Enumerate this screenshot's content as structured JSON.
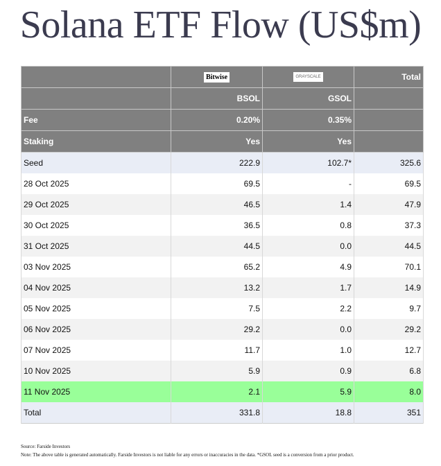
{
  "title": "Solana ETF Flow (US$m)",
  "header": {
    "logos": [
      "Bitwise",
      "GRAYSCALE"
    ],
    "total_label": "Total",
    "tickers": [
      "BSOL",
      "GSOL"
    ],
    "fee_label": "Fee",
    "fees": [
      "0.20%",
      "0.35%"
    ],
    "staking_label": "Staking",
    "staking": [
      "Yes",
      "Yes"
    ]
  },
  "rows": [
    {
      "label": "Seed",
      "bsol": "222.9",
      "gsol": "102.7*",
      "total": "325.6"
    },
    {
      "label": "28 Oct 2025",
      "bsol": "69.5",
      "gsol": "-",
      "total": "69.5"
    },
    {
      "label": "29 Oct 2025",
      "bsol": "46.5",
      "gsol": "1.4",
      "total": "47.9"
    },
    {
      "label": "30 Oct 2025",
      "bsol": "36.5",
      "gsol": "0.8",
      "total": "37.3"
    },
    {
      "label": "31 Oct 2025",
      "bsol": "44.5",
      "gsol": "0.0",
      "total": "44.5"
    },
    {
      "label": "03 Nov 2025",
      "bsol": "65.2",
      "gsol": "4.9",
      "total": "70.1"
    },
    {
      "label": "04 Nov 2025",
      "bsol": "13.2",
      "gsol": "1.7",
      "total": "14.9"
    },
    {
      "label": "05 Nov 2025",
      "bsol": "7.5",
      "gsol": "2.2",
      "total": "9.7"
    },
    {
      "label": "06 Nov 2025",
      "bsol": "29.2",
      "gsol": "0.0",
      "total": "29.2"
    },
    {
      "label": "07 Nov 2025",
      "bsol": "11.7",
      "gsol": "1.0",
      "total": "12.7"
    },
    {
      "label": "10 Nov 2025",
      "bsol": "5.9",
      "gsol": "0.9",
      "total": "6.8"
    },
    {
      "label": "11 Nov 2025",
      "bsol": "2.1",
      "gsol": "5.9",
      "total": "8.0"
    },
    {
      "label": "Total",
      "bsol": "331.8",
      "gsol": "18.8",
      "total": "351"
    }
  ],
  "colors": {
    "header": "#808080",
    "highlight": "#99ff99",
    "seed_total": "#e9edf6",
    "alt": "#f2f2f2"
  },
  "footer": {
    "source": "Source: Farside Investors",
    "note": "Note: The above table is generated automatically. Farside Investors is not liable for any errors or inaccuracies in the data. *GSOL seed is a conversion from a prior product."
  }
}
